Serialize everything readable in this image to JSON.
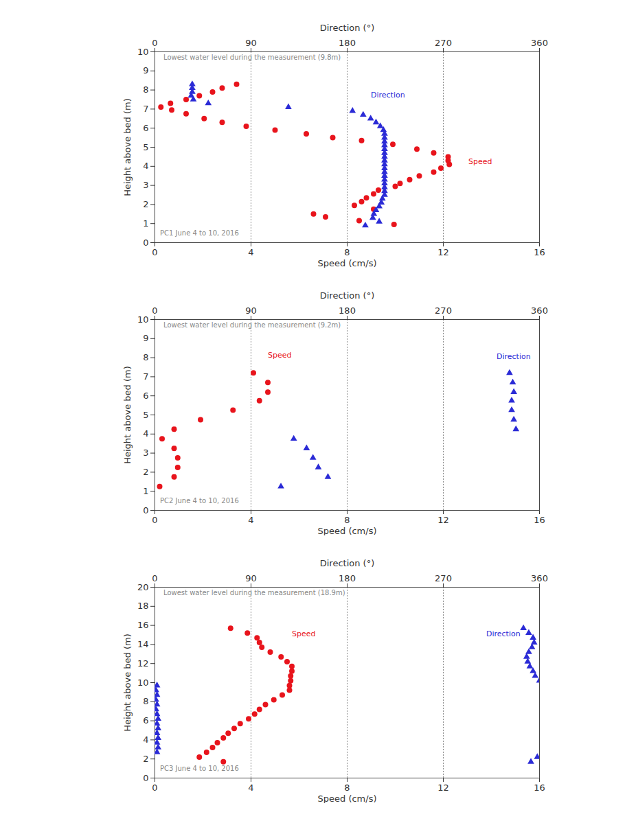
{
  "chart_data": [
    {
      "type": "scatter",
      "xlabel": "Speed (cm/s)",
      "x2label": "Direction (°)",
      "ylabel": "Height above bed (m)",
      "xlim": [
        0,
        16
      ],
      "xticks": [
        0,
        4,
        8,
        12,
        16
      ],
      "x2lim": [
        0,
        360
      ],
      "x2ticks": [
        0,
        90,
        180,
        270,
        360
      ],
      "ylim": [
        0,
        10
      ],
      "yticks": [
        0,
        1,
        2,
        3,
        4,
        5,
        6,
        7,
        8,
        9,
        10
      ],
      "grid": true,
      "annotations": [
        "Lowest water level during the measurement (9.8m)",
        "PC1  June 4 to 10, 2016"
      ],
      "series": [
        {
          "name": "Speed",
          "color": "#e8141c",
          "marker": "circle",
          "x": [
            0.25,
            0.65,
            0.7,
            1.3,
            1.3,
            1.85,
            2.05,
            2.4,
            2.8,
            2.8,
            3.4,
            3.8,
            5.0,
            6.3,
            7.4,
            8.6,
            9.9,
            10.9,
            11.6,
            12.2,
            12.2,
            12.25,
            11.9,
            11.6,
            11.0,
            10.6,
            10.2,
            10.0,
            9.3,
            9.1,
            8.8,
            8.6,
            8.3,
            9.1,
            6.6,
            7.1,
            8.5,
            9.95
          ],
          "y": [
            7.1,
            7.3,
            6.95,
            7.5,
            6.75,
            7.7,
            6.5,
            7.9,
            8.1,
            6.3,
            8.3,
            6.1,
            5.9,
            5.7,
            5.5,
            5.35,
            5.15,
            4.9,
            4.7,
            4.5,
            4.3,
            4.1,
            3.9,
            3.7,
            3.5,
            3.3,
            3.1,
            2.95,
            2.75,
            2.55,
            2.35,
            2.15,
            1.95,
            1.75,
            1.5,
            1.35,
            1.15,
            0.95
          ]
        },
        {
          "name": "Direction",
          "color": "#2b2bd6",
          "marker": "triangle",
          "axis": "x2",
          "x": [
            35,
            35,
            35,
            34,
            36,
            50,
            125,
            185,
            195,
            202,
            207,
            211,
            214,
            215,
            215,
            215,
            215,
            215,
            215,
            215,
            215,
            215,
            215,
            215,
            215,
            215,
            215,
            215,
            215,
            215,
            213,
            212,
            210,
            207,
            205,
            204,
            210,
            197
          ],
          "y": [
            8.3,
            8.1,
            7.9,
            7.7,
            7.5,
            7.3,
            7.1,
            6.9,
            6.7,
            6.5,
            6.3,
            6.1,
            5.9,
            5.7,
            5.5,
            5.3,
            5.1,
            4.9,
            4.7,
            4.5,
            4.3,
            4.1,
            3.9,
            3.7,
            3.5,
            3.3,
            3.1,
            2.9,
            2.7,
            2.5,
            2.3,
            2.1,
            1.9,
            1.7,
            1.5,
            1.3,
            1.1,
            0.9
          ]
        }
      ]
    },
    {
      "type": "scatter",
      "xlabel": "Speed (cm/s)",
      "x2label": "Direction (°)",
      "ylabel": "Height above bed (m)",
      "xlim": [
        0,
        16
      ],
      "xticks": [
        0,
        4,
        8,
        12,
        16
      ],
      "x2lim": [
        0,
        360
      ],
      "x2ticks": [
        0,
        90,
        180,
        270,
        360
      ],
      "ylim": [
        0,
        10
      ],
      "yticks": [
        0,
        1,
        2,
        3,
        4,
        5,
        6,
        7,
        8,
        9,
        10
      ],
      "grid": true,
      "annotations": [
        "Lowest water level during the measurement (9.2m)",
        "PC2  June 4 to 10, 2016"
      ],
      "series": [
        {
          "name": "Speed",
          "color": "#e8141c",
          "marker": "circle",
          "x": [
            4.1,
            4.7,
            4.7,
            4.35,
            3.25,
            1.9,
            0.8,
            0.3,
            0.8,
            0.95,
            0.95,
            0.8,
            0.2
          ],
          "y": [
            7.2,
            6.7,
            6.2,
            5.75,
            5.25,
            4.75,
            4.25,
            3.75,
            3.25,
            2.75,
            2.25,
            1.75,
            1.25
          ]
        },
        {
          "name": "Direction",
          "color": "#2b2bd6",
          "marker": "triangle",
          "axis": "x2",
          "x": [
            332,
            335,
            336,
            334,
            334,
            336,
            338,
            130,
            142,
            148,
            153,
            162,
            118
          ],
          "y": [
            7.2,
            6.7,
            6.2,
            5.75,
            5.25,
            4.75,
            4.25,
            3.75,
            3.25,
            2.75,
            2.25,
            1.75,
            1.25
          ]
        }
      ]
    },
    {
      "type": "scatter",
      "xlabel": "Speed (cm/s)",
      "x2label": "Direction (°)",
      "ylabel": "Height above bed (m)",
      "xlim": [
        0,
        16
      ],
      "xticks": [
        0,
        4,
        8,
        12,
        16
      ],
      "x2lim": [
        0,
        360
      ],
      "x2ticks": [
        0,
        90,
        180,
        270,
        360
      ],
      "ylim": [
        0,
        20
      ],
      "yticks": [
        0,
        2,
        4,
        6,
        8,
        10,
        12,
        14,
        16,
        18,
        20
      ],
      "grid": true,
      "annotations": [
        "Lowest water level during the measurement (18.9m)",
        "PC3  June 4 to 10, 2016"
      ],
      "series": [
        {
          "name": "Speed",
          "color": "#e8141c",
          "marker": "circle",
          "x": [
            3.15,
            3.85,
            4.25,
            4.35,
            4.45,
            4.8,
            5.25,
            5.5,
            5.7,
            5.7,
            5.65,
            5.65,
            5.6,
            5.6,
            5.3,
            4.95,
            4.6,
            4.35,
            4.15,
            3.9,
            3.55,
            3.3,
            3.05,
            2.85,
            2.6,
            2.4,
            2.15,
            1.85,
            2.85
          ],
          "y": [
            15.7,
            15.2,
            14.7,
            14.2,
            13.7,
            13.2,
            12.7,
            12.2,
            11.7,
            11.2,
            10.7,
            10.2,
            9.7,
            9.2,
            8.7,
            8.2,
            7.7,
            7.2,
            6.7,
            6.2,
            5.7,
            5.2,
            4.7,
            4.2,
            3.7,
            3.2,
            2.7,
            2.2,
            1.7
          ]
        },
        {
          "name": "Direction",
          "color": "#2b2bd6",
          "marker": "triangle",
          "axis": "x2",
          "x": [
            345,
            350,
            354,
            355,
            353,
            350,
            348,
            349,
            351,
            354,
            356,
            360,
            2,
            1,
            2,
            1,
            2,
            1,
            2,
            3,
            2,
            3,
            2,
            3,
            2,
            3,
            2,
            358,
            352
          ],
          "y": [
            15.7,
            15.2,
            14.7,
            14.2,
            13.7,
            13.2,
            12.7,
            12.2,
            11.7,
            11.2,
            10.7,
            10.2,
            9.7,
            9.2,
            8.7,
            8.2,
            7.7,
            7.2,
            6.7,
            6.2,
            5.7,
            5.2,
            4.7,
            4.2,
            3.7,
            3.2,
            2.7,
            2.2,
            1.7
          ]
        }
      ]
    }
  ]
}
